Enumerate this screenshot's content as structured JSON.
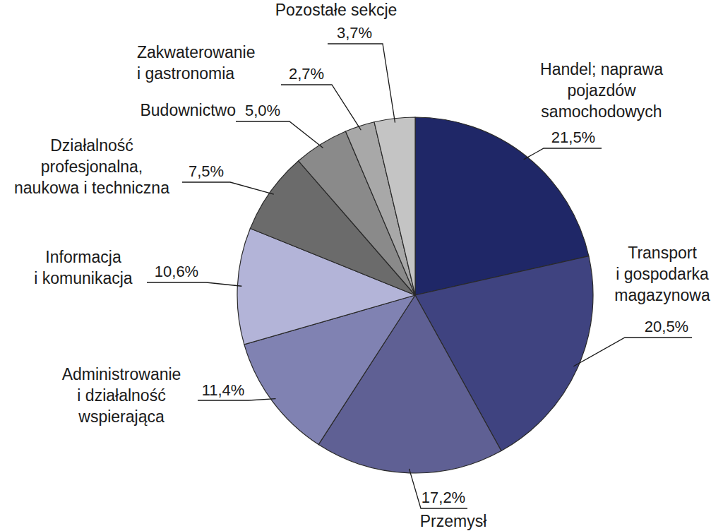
{
  "chart_data": {
    "type": "pie",
    "categories": [
      "Handel; naprawa\npojazdów\nsamochodowych",
      "Transport\ni gospodarka\nmagazynowa",
      "Przemysł",
      "Administrowanie\ni działalność\nwspierająca",
      "Informacja\ni komunikacja",
      "Działalność\nprofesjonalna,\nnaukowa i techniczna",
      "Budownictwo",
      "Zakwaterowanie\ni gastronomia",
      "Pozostałe sekcje"
    ],
    "values": [
      21.5,
      20.5,
      17.2,
      11.4,
      10.6,
      7.5,
      5.0,
      2.7,
      3.7
    ],
    "value_labels": [
      "21,5%",
      "20,5%",
      "17,2%",
      "11,4%",
      "10,6%",
      "7,5%",
      "5,0%",
      "2,7%",
      "3,7%"
    ],
    "colors": [
      "#1f2767",
      "#3f4380",
      "#5f6094",
      "#8082b2",
      "#b3b4d8",
      "#6b6b6b",
      "#8a8a8a",
      "#a8a8a8",
      "#c4c4c4"
    ],
    "data_labels": true
  }
}
